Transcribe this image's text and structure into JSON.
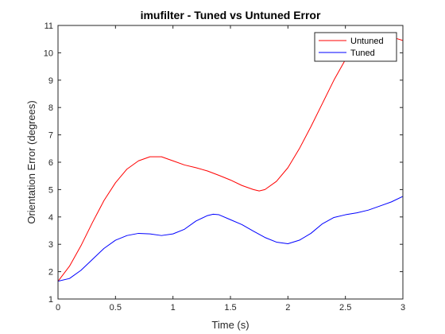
{
  "chart_data": {
    "type": "line",
    "title": "imufilter - Tuned vs Untuned Error",
    "xlabel": "Time (s)",
    "ylabel": "Orientation Error (degrees)",
    "xlim": [
      0,
      3
    ],
    "ylim": [
      1,
      11
    ],
    "xticks": [
      0,
      0.5,
      1,
      1.5,
      2,
      2.5,
      3
    ],
    "xtick_labels": [
      "0",
      "0.5",
      "1",
      "1.5",
      "2",
      "2.5",
      "3"
    ],
    "yticks": [
      1,
      2,
      3,
      4,
      5,
      6,
      7,
      8,
      9,
      10,
      11
    ],
    "ytick_labels": [
      "1",
      "2",
      "3",
      "4",
      "5",
      "6",
      "7",
      "8",
      "9",
      "10",
      "11"
    ],
    "grid": false,
    "legend_position": "top-right",
    "series": [
      {
        "name": "Untuned",
        "color": "#ff0000",
        "x": [
          0,
          0.1,
          0.2,
          0.3,
          0.4,
          0.5,
          0.6,
          0.7,
          0.8,
          0.9,
          1.0,
          1.1,
          1.2,
          1.3,
          1.4,
          1.5,
          1.6,
          1.7,
          1.75,
          1.8,
          1.9,
          2.0,
          2.1,
          2.2,
          2.3,
          2.4,
          2.5,
          2.6,
          2.7,
          2.8,
          2.9,
          3.0
        ],
        "y": [
          1.65,
          2.2,
          2.95,
          3.8,
          4.6,
          5.25,
          5.75,
          6.05,
          6.2,
          6.2,
          6.05,
          5.9,
          5.8,
          5.68,
          5.52,
          5.35,
          5.15,
          5.0,
          4.95,
          5.0,
          5.3,
          5.8,
          6.5,
          7.3,
          8.15,
          9.0,
          9.75,
          10.3,
          10.6,
          10.65,
          10.58,
          10.45
        ]
      },
      {
        "name": "Tuned",
        "color": "#0000ff",
        "x": [
          0,
          0.1,
          0.2,
          0.3,
          0.4,
          0.5,
          0.6,
          0.7,
          0.8,
          0.9,
          1.0,
          1.1,
          1.2,
          1.3,
          1.35,
          1.4,
          1.5,
          1.6,
          1.7,
          1.8,
          1.9,
          2.0,
          2.1,
          2.2,
          2.3,
          2.4,
          2.5,
          2.6,
          2.7,
          2.8,
          2.9,
          3.0
        ],
        "y": [
          1.65,
          1.75,
          2.05,
          2.45,
          2.85,
          3.15,
          3.32,
          3.4,
          3.38,
          3.32,
          3.38,
          3.55,
          3.85,
          4.05,
          4.1,
          4.08,
          3.9,
          3.72,
          3.48,
          3.25,
          3.08,
          3.02,
          3.15,
          3.4,
          3.75,
          3.98,
          4.08,
          4.15,
          4.25,
          4.4,
          4.55,
          4.75
        ]
      }
    ]
  }
}
